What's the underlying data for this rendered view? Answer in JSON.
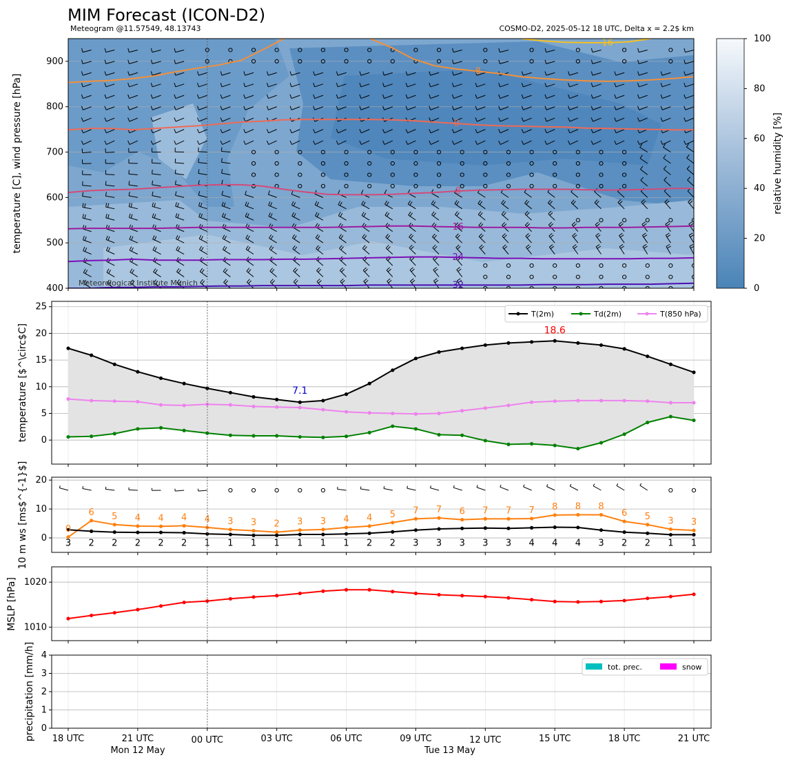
{
  "header": {
    "title": "MIM Forecast (ICON-D2)",
    "subtitle_left": "Meteogram @11.57549, 48.13743",
    "subtitle_right": "COSMO-D2, 2025-05-12 18 UTC, Delta x = 2.2$ km"
  },
  "colors": {
    "t2m": "#000000",
    "td2m": "#008000",
    "t850": "#ee82ee",
    "wind": "#ff7f0e",
    "mslp": "#ff0000",
    "max_label": "#ff0000",
    "min_label": "#0000cc",
    "prec": "#00bfbf",
    "snow": "#ff00ff",
    "humidity_low": "#4a84b8",
    "humidity_high": "#f6f9fc"
  },
  "x_axis": {
    "tick_labels": [
      "18 UTC",
      "21 UTC",
      "00 UTC",
      "03 UTC",
      "06 UTC",
      "09 UTC",
      "12 UTC",
      "15 UTC",
      "18 UTC",
      "21 UTC"
    ],
    "day_labels": [
      "Mon 12 May",
      "Tue 13 May"
    ]
  },
  "chart_data": [
    {
      "type": "heatmap",
      "panel": "upper-air",
      "ylabel": "temperature [C], wind pressure [hPa]",
      "ylim": [
        950,
        400
      ],
      "yticks": [
        400,
        500,
        600,
        700,
        800,
        900
      ],
      "fill": "relative humidity",
      "colorbar": {
        "label": "relative humidity [%]",
        "ticks": [
          0,
          20,
          40,
          60,
          80,
          100
        ]
      },
      "contours": [
        {
          "level": -32,
          "label": "-32",
          "color": "#4b0fb0",
          "pressures": [
            400,
            400,
            402,
            402,
            403,
            403,
            404,
            405,
            405,
            406,
            406,
            406,
            406,
            406,
            407,
            407,
            407,
            407,
            407,
            407,
            407,
            407,
            408,
            408,
            408,
            409,
            409,
            409,
            410,
            411
          ]
        },
        {
          "level": -24,
          "label": "-24",
          "color": "#7b0fb8",
          "pressures": [
            459,
            461,
            462,
            464,
            462,
            462,
            462,
            463,
            463,
            463,
            464,
            464,
            465,
            466,
            467,
            468,
            469,
            469,
            468,
            467,
            466,
            466,
            465,
            465,
            465,
            465,
            465,
            466,
            466,
            467
          ]
        },
        {
          "level": -16,
          "label": "-16",
          "color": "#9d1aa0",
          "pressures": [
            531,
            532,
            532,
            532,
            532,
            533,
            534,
            534,
            534,
            534,
            534,
            534,
            534,
            535,
            536,
            537,
            537,
            536,
            535,
            534,
            534,
            534,
            533,
            533,
            534,
            534,
            534,
            535,
            536,
            537
          ]
        },
        {
          "level": -8,
          "label": "-8",
          "color": "#d44a78",
          "pressures": [
            611,
            615,
            617,
            618,
            621,
            624,
            627,
            628,
            628,
            625,
            618,
            612,
            607,
            606,
            606,
            607,
            609,
            611,
            614,
            616,
            617,
            618,
            618,
            618,
            617,
            616,
            617,
            618,
            620,
            620
          ]
        },
        {
          "level": 0,
          "label": "0",
          "color": "#f06a55",
          "pressures": [
            749,
            752,
            752,
            749,
            752,
            755,
            758,
            762,
            766,
            768,
            771,
            772,
            772,
            772,
            772,
            771,
            769,
            766,
            763,
            760,
            758,
            757,
            756,
            755,
            753,
            752,
            751,
            750,
            749,
            749
          ]
        },
        {
          "level": 8,
          "label": "8",
          "color": "#f4903a",
          "pressures": [
            853,
            856,
            858,
            862,
            868,
            877,
            885,
            892,
            902,
            925,
            950,
            null,
            null,
            null,
            950,
            930,
            905,
            890,
            883,
            878,
            873,
            866,
            862,
            859,
            857,
            856,
            857,
            859,
            862,
            866
          ]
        },
        {
          "level": 16,
          "label": "16",
          "color": "#f5c022",
          "pressures": [
            null,
            null,
            null,
            null,
            null,
            null,
            null,
            null,
            null,
            null,
            null,
            null,
            null,
            null,
            null,
            null,
            null,
            null,
            null,
            null,
            null,
            950,
            945,
            942,
            941,
            941,
            943,
            950,
            null,
            null
          ]
        }
      ],
      "wind_barbs": "every 3 h at pressure levels 400–950 hPa; calm (circle) at upper/mid levels from 02 UTC on 13 May"
    },
    {
      "type": "line",
      "panel": "temperature",
      "ylabel": "temperature [$^\\circ$C]",
      "ylim": [
        -4.5,
        26
      ],
      "yticks": [
        0,
        5,
        10,
        15,
        20,
        25
      ],
      "x_hours": [
        18,
        19,
        20,
        21,
        22,
        23,
        24,
        25,
        26,
        27,
        28,
        29,
        30,
        31,
        32,
        33,
        34,
        35,
        36,
        37,
        38,
        39,
        40,
        41,
        42,
        43,
        44,
        45
      ],
      "series": [
        {
          "name": "T(2m)",
          "values": [
            17.2,
            15.9,
            14.2,
            12.8,
            11.6,
            10.6,
            9.7,
            8.9,
            8.1,
            7.6,
            7.1,
            7.4,
            8.6,
            10.6,
            13.1,
            15.3,
            16.5,
            17.2,
            17.8,
            18.2,
            18.4,
            18.6,
            18.2,
            17.8,
            17.1,
            15.7,
            14.2,
            12.7
          ]
        },
        {
          "name": "Td(2m)",
          "values": [
            0.6,
            0.7,
            1.2,
            2.1,
            2.3,
            1.8,
            1.3,
            0.9,
            0.8,
            0.8,
            0.6,
            0.5,
            0.7,
            1.4,
            2.6,
            2.1,
            1.0,
            0.9,
            -0.1,
            -0.8,
            -0.7,
            -1.0,
            -1.6,
            -0.5,
            1.1,
            3.3,
            4.4,
            3.7
          ]
        },
        {
          "name": "T(850 hPa)",
          "values": [
            7.7,
            7.4,
            7.3,
            7.2,
            6.6,
            6.5,
            6.7,
            6.6,
            6.3,
            6.2,
            6.1,
            5.7,
            5.3,
            5.1,
            5.0,
            4.9,
            5.0,
            5.5,
            6.0,
            6.5,
            7.1,
            7.3,
            7.4,
            7.4,
            7.4,
            7.3,
            7.0,
            7.0
          ]
        }
      ],
      "annotations": {
        "max": "18.6",
        "min": "7.1"
      }
    },
    {
      "type": "line",
      "panel": "wind",
      "ylabel": "10 m ws [ms$^{-1}$]",
      "ylim": [
        -5,
        21
      ],
      "yticks": [
        0,
        10,
        20
      ],
      "x_hours": [
        18,
        19,
        20,
        21,
        22,
        23,
        24,
        25,
        26,
        27,
        28,
        29,
        30,
        31,
        32,
        33,
        34,
        35,
        36,
        37,
        38,
        39,
        40,
        41,
        42,
        43,
        44,
        45
      ],
      "series": [
        {
          "name": "10 m wind speed",
          "values": [
            2.8,
            2.3,
            2.0,
            1.9,
            1.9,
            1.8,
            1.4,
            1.2,
            0.9,
            0.9,
            1.2,
            1.2,
            1.4,
            1.6,
            2.1,
            2.7,
            3.1,
            3.3,
            3.4,
            3.3,
            3.5,
            3.7,
            3.6,
            2.7,
            2.0,
            1.6,
            1.1,
            1.1
          ]
        },
        {
          "name": "10 m gusts",
          "values": [
            0.3,
            6.0,
            4.6,
            4.1,
            4.0,
            4.2,
            3.6,
            2.9,
            2.5,
            2.0,
            2.7,
            2.9,
            3.6,
            4.1,
            5.3,
            6.6,
            6.9,
            6.3,
            6.6,
            6.6,
            6.7,
            7.9,
            8.0,
            8.0,
            5.7,
            4.6,
            3.0,
            2.6
          ]
        }
      ],
      "speed_labels": [
        "3",
        "2",
        "2",
        "2",
        "2",
        "2",
        "1",
        "1",
        "1",
        "1",
        "1",
        "1",
        "1",
        "2",
        "2",
        "3",
        "3",
        "3",
        "3",
        "3",
        "4",
        "4",
        "4",
        "3",
        "2",
        "2",
        "1",
        "1"
      ],
      "gust_labels": [
        "0",
        "6",
        "5",
        "4",
        "4",
        "4",
        "4",
        "3",
        "3",
        "2",
        "3",
        "3",
        "4",
        "4",
        "5",
        "7",
        "7",
        "6",
        "7",
        "7",
        "7",
        "8",
        "8",
        "8",
        "6",
        "5",
        "3",
        "3"
      ]
    },
    {
      "type": "line",
      "panel": "mslp",
      "ylabel": "MSLP [hPa]",
      "ylim": [
        1007,
        1023.4
      ],
      "yticks": [
        1010,
        1020
      ],
      "x_hours": [
        18,
        19,
        20,
        21,
        22,
        23,
        24,
        25,
        26,
        27,
        28,
        29,
        30,
        31,
        32,
        33,
        34,
        35,
        36,
        37,
        38,
        39,
        40,
        41,
        42,
        43,
        44,
        45
      ],
      "series": [
        {
          "name": "MSLP",
          "values": [
            1011.9,
            1012.6,
            1013.2,
            1013.9,
            1014.7,
            1015.5,
            1015.8,
            1016.3,
            1016.7,
            1017.0,
            1017.5,
            1018.0,
            1018.3,
            1018.3,
            1017.9,
            1017.5,
            1017.2,
            1017.0,
            1016.8,
            1016.5,
            1016.1,
            1015.7,
            1015.6,
            1015.7,
            1015.9,
            1016.4,
            1016.8,
            1017.3
          ]
        }
      ]
    },
    {
      "type": "bar",
      "panel": "precipitation",
      "ylabel": "precipitation [mm/h]",
      "ylim": [
        0,
        4
      ],
      "yticks": [
        0,
        1,
        2,
        3,
        4
      ],
      "series": [
        {
          "name": "tot. prec.",
          "values": [
            0,
            0,
            0,
            0,
            0,
            0,
            0,
            0,
            0,
            0,
            0,
            0,
            0,
            0,
            0,
            0,
            0,
            0,
            0,
            0,
            0,
            0,
            0,
            0,
            0,
            0,
            0,
            0
          ]
        },
        {
          "name": "snow",
          "values": [
            0,
            0,
            0,
            0,
            0,
            0,
            0,
            0,
            0,
            0,
            0,
            0,
            0,
            0,
            0,
            0,
            0,
            0,
            0,
            0,
            0,
            0,
            0,
            0,
            0,
            0,
            0,
            0
          ]
        }
      ]
    }
  ],
  "credit": "Meteorological Institute Munich"
}
